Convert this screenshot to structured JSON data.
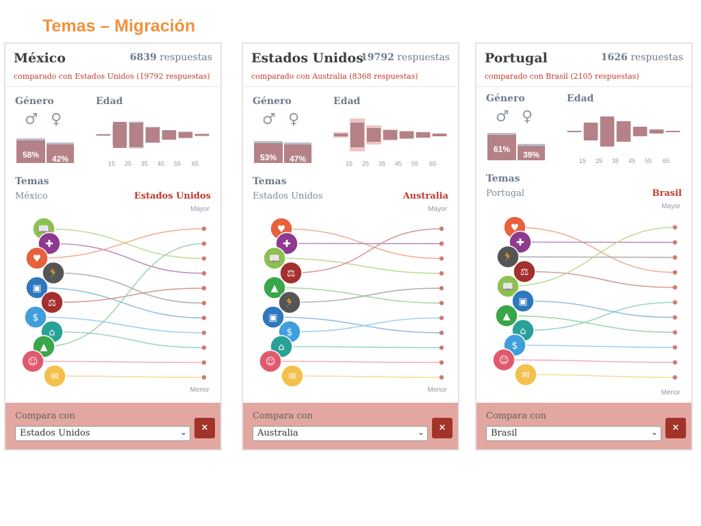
{
  "title": "Temas – Migración",
  "labels": {
    "genero": "Género",
    "edad": "Edad",
    "temas": "Temas",
    "mayor": "Mayor",
    "menor": "Menor",
    "compara": "Compara con",
    "respuestas": "respuestas",
    "male_symbol": "♂",
    "female_symbol": "♀",
    "close": "×",
    "chevron": "⌄"
  },
  "age_ticks": [
    "15",
    "25",
    "35",
    "45",
    "55",
    "65"
  ],
  "colors": {
    "accent": "#c0392b",
    "bar": "#b48286",
    "footer": "#e3a7a1",
    "close": "#a23328",
    "title": "#f0923c"
  },
  "panels": [
    {
      "country": "México",
      "count": "6839",
      "compared": "comparado con Estados Unidos (19792 respuestas)",
      "left_name": "México",
      "right_name": "Estados Unidos",
      "select_value": "Estados Unidos",
      "gender": {
        "male": "58%",
        "female": "42%",
        "male_value": 58,
        "female_value": 42
      },
      "age_values": [
        2,
        38,
        36,
        22,
        14,
        9,
        3
      ],
      "age_compare": [
        2,
        30,
        40,
        24,
        12,
        7,
        3
      ],
      "icons": [
        "book",
        "plus",
        "heart",
        "runner",
        "briefcase",
        "scale",
        "money",
        "house",
        "tree",
        "people",
        "letter"
      ],
      "ranks": [
        2,
        3,
        0,
        5,
        6,
        4,
        7,
        8,
        1,
        9,
        10
      ]
    },
    {
      "country": "Estados Unidos",
      "count": "19792",
      "compared": "comparado con Australia (8368 respuestas)",
      "left_name": "Estados Unidos",
      "right_name": "Australia",
      "select_value": "Australia",
      "gender": {
        "male": "53%",
        "female": "47%",
        "male_value": 53,
        "female_value": 47
      },
      "age_values": [
        4,
        36,
        20,
        14,
        10,
        8,
        4
      ],
      "age_compare": [
        8,
        48,
        28,
        16,
        12,
        8,
        4
      ],
      "icons": [
        "heart",
        "plus",
        "book",
        "scale",
        "tree",
        "runner",
        "briefcase",
        "money",
        "house",
        "people",
        "letter"
      ],
      "ranks": [
        2,
        1,
        3,
        0,
        5,
        4,
        7,
        6,
        8,
        9,
        10
      ]
    },
    {
      "country": "Portugal",
      "count": "1626",
      "compared": "comparado con Brasil (2105 respuestas)",
      "left_name": "Portugal",
      "right_name": "Brasil",
      "select_value": "Brasil",
      "gender": {
        "male": "61%",
        "female": "39%",
        "male_value": 61,
        "female_value": 39
      },
      "age_values": [
        2,
        26,
        44,
        30,
        14,
        6,
        2
      ],
      "age_compare": [
        2,
        22,
        40,
        28,
        12,
        6,
        2
      ],
      "icons": [
        "heart",
        "plus",
        "runner",
        "scale",
        "book",
        "briefcase",
        "tree",
        "house",
        "money",
        "people",
        "letter"
      ],
      "ranks": [
        3,
        1,
        2,
        4,
        0,
        6,
        7,
        5,
        8,
        9,
        10
      ]
    }
  ]
}
